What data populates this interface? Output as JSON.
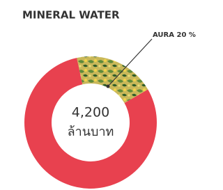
{
  "chart_data": {
    "type": "donut",
    "title": "MINERAL WATER",
    "categories": [
      null,
      "AURA"
    ],
    "values": [
      80,
      20
    ],
    "value_labels": [
      null,
      "20 %"
    ],
    "colors": [
      "#e8414f",
      "pattern"
    ],
    "total": {
      "value": 4200,
      "label": "4,200"
    },
    "total_unit": "ล้านบาท"
  }
}
